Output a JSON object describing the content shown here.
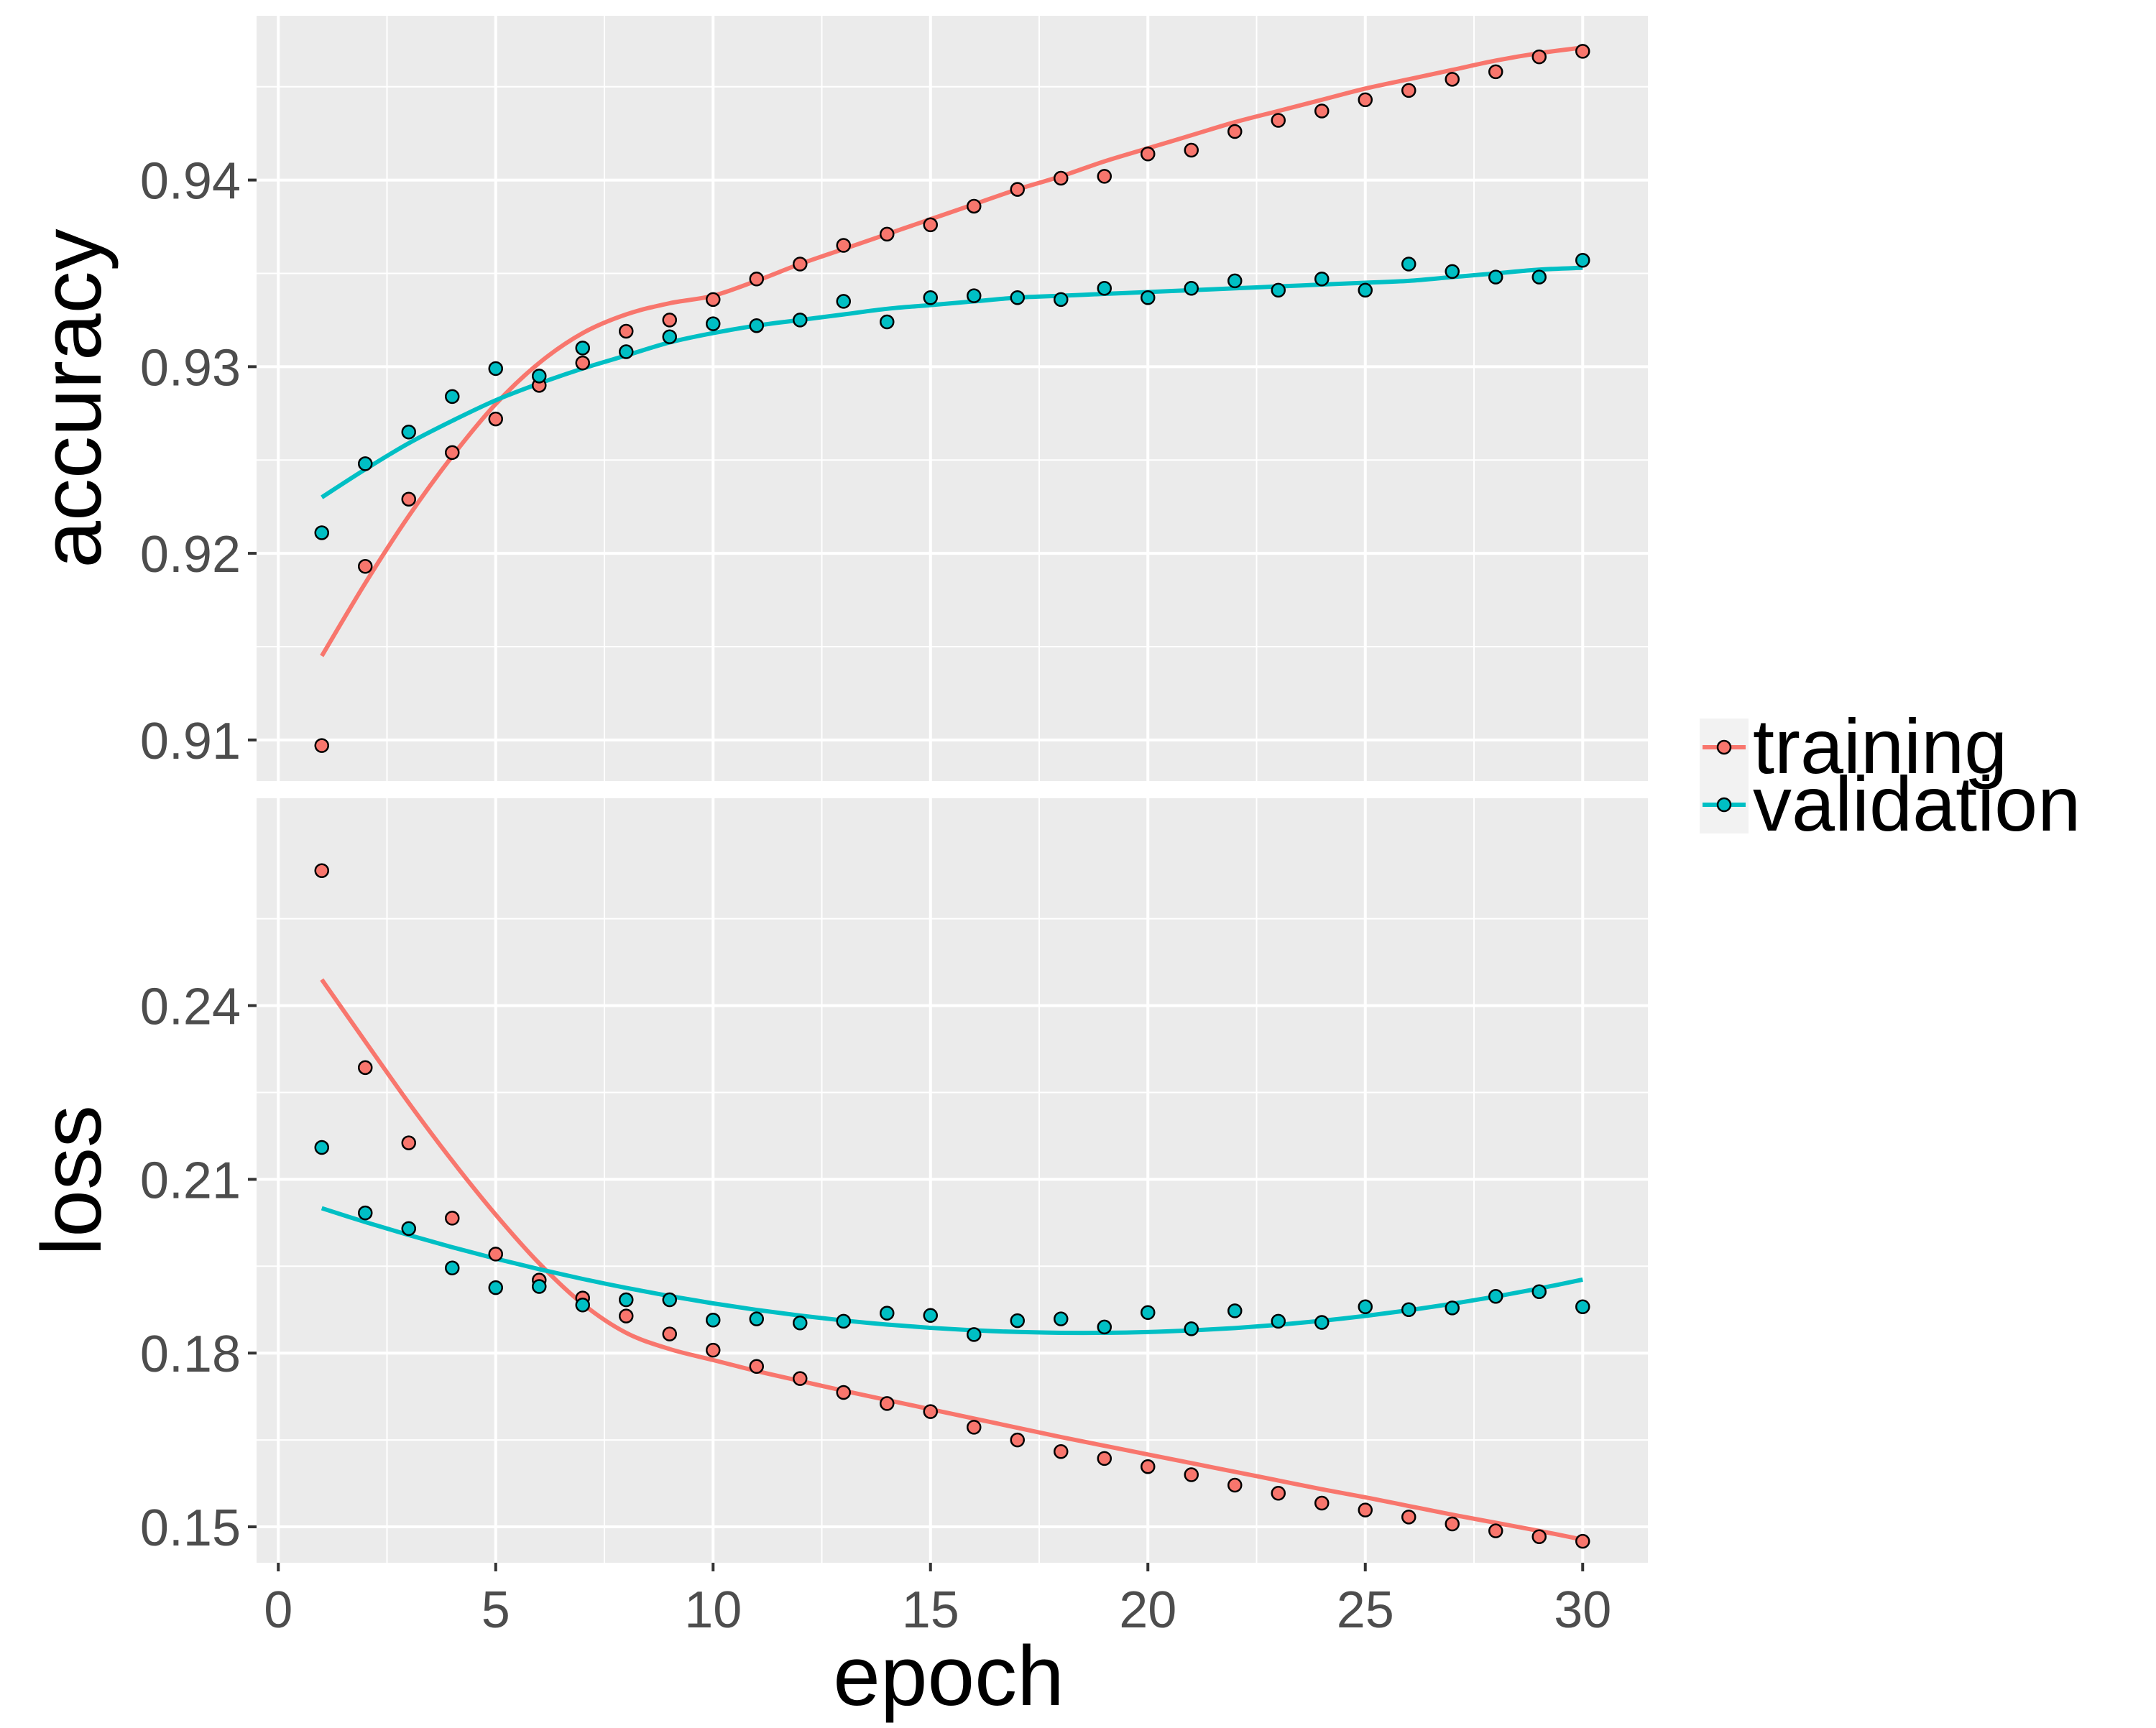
{
  "chart_data": [
    {
      "type": "scatter",
      "facet_label": "accuracy",
      "xlabel": "epoch",
      "ylabel": "accuracy",
      "xlim": [
        -0.5,
        31.5
      ],
      "ylim": [
        0.9078,
        0.9488
      ],
      "x_ticks": [
        0,
        5,
        10,
        15,
        20,
        25,
        30
      ],
      "x_tick_labels": [
        "0",
        "5",
        "10",
        "15",
        "20",
        "25",
        "30"
      ],
      "y_ticks": [
        0.91,
        0.92,
        0.93,
        0.94
      ],
      "y_tick_labels": [
        "0.91",
        "0.92",
        "0.93",
        "0.94"
      ],
      "grid": true,
      "smoothed_trend_lines": true,
      "x": [
        1,
        2,
        3,
        4,
        5,
        6,
        7,
        8,
        9,
        10,
        11,
        12,
        13,
        14,
        15,
        16,
        17,
        18,
        19,
        20,
        21,
        22,
        23,
        24,
        25,
        26,
        27,
        28,
        29,
        30
      ],
      "series": [
        {
          "name": "training",
          "color": "#F8766D",
          "values": [
            0.9097,
            0.9193,
            0.9229,
            0.9254,
            0.9272,
            0.929,
            0.9302,
            0.9319,
            0.9325,
            0.9336,
            0.9347,
            0.9355,
            0.9365,
            0.9371,
            0.9376,
            0.9386,
            0.9395,
            0.9401,
            0.9402,
            0.9414,
            0.9416,
            0.9426,
            0.9432,
            0.9437,
            0.9443,
            0.9448,
            0.9454,
            0.9458,
            0.9466,
            0.9469
          ],
          "trend": [
            0.9145,
            0.9184,
            0.922,
            0.9252,
            0.928,
            0.9302,
            0.9318,
            0.9328,
            0.9334,
            0.9338,
            0.9346,
            0.9355,
            0.9363,
            0.9371,
            0.9379,
            0.9387,
            0.9395,
            0.9402,
            0.941,
            0.9417,
            0.9424,
            0.9431,
            0.9437,
            0.9443,
            0.9449,
            0.9454,
            0.9459,
            0.9464,
            0.9468,
            0.9471
          ]
        },
        {
          "name": "validation",
          "color": "#00BFC4",
          "values": [
            0.9211,
            0.9248,
            0.9265,
            0.9284,
            0.9299,
            0.9295,
            0.931,
            0.9308,
            0.9316,
            0.9323,
            0.9322,
            0.9325,
            0.9335,
            0.9324,
            0.9337,
            0.9338,
            0.9337,
            0.9336,
            0.9342,
            0.9337,
            0.9342,
            0.9346,
            0.9341,
            0.9347,
            0.9341,
            0.9355,
            0.9351,
            0.9348,
            0.9348,
            0.9357
          ],
          "trend": [
            0.923,
            0.9245,
            0.9259,
            0.9271,
            0.9282,
            0.9291,
            0.9299,
            0.9306,
            0.9313,
            0.9318,
            0.9322,
            0.9325,
            0.9328,
            0.9331,
            0.9333,
            0.9335,
            0.9337,
            0.9338,
            0.9339,
            0.934,
            0.9341,
            0.9342,
            0.9343,
            0.9344,
            0.9345,
            0.9346,
            0.9348,
            0.935,
            0.9352,
            0.9353
          ]
        }
      ]
    },
    {
      "type": "scatter",
      "facet_label": "loss",
      "xlabel": "epoch",
      "ylabel": "loss",
      "xlim": [
        -0.5,
        31.5
      ],
      "ylim": [
        0.1438,
        0.2758
      ],
      "x_ticks": [
        0,
        5,
        10,
        15,
        20,
        25,
        30
      ],
      "x_tick_labels": [
        "0",
        "5",
        "10",
        "15",
        "20",
        "25",
        "30"
      ],
      "y_ticks": [
        0.15,
        0.18,
        0.21,
        0.24
      ],
      "y_tick_labels": [
        "0.15",
        "0.18",
        "0.21",
        "0.24"
      ],
      "grid": true,
      "smoothed_trend_lines": true,
      "x": [
        1,
        2,
        3,
        4,
        5,
        6,
        7,
        8,
        9,
        10,
        11,
        12,
        13,
        14,
        15,
        16,
        17,
        18,
        19,
        20,
        21,
        22,
        23,
        24,
        25,
        26,
        27,
        28,
        29,
        30
      ],
      "series": [
        {
          "name": "training",
          "color": "#F8766D",
          "values": [
            0.2633,
            0.2293,
            0.2163,
            0.2033,
            0.1971,
            0.1926,
            0.1895,
            0.1864,
            0.1833,
            0.1805,
            0.1777,
            0.1756,
            0.1732,
            0.1713,
            0.1699,
            0.1672,
            0.165,
            0.163,
            0.1618,
            0.1604,
            0.159,
            0.1572,
            0.1558,
            0.1541,
            0.1529,
            0.1517,
            0.1505,
            0.1493,
            0.1483,
            0.1475
          ],
          "trend": [
            0.2445,
            0.2338,
            0.2232,
            0.2132,
            0.2039,
            0.1955,
            0.1885,
            0.1835,
            0.1807,
            0.1788,
            0.1769,
            0.1752,
            0.1735,
            0.1719,
            0.1703,
            0.1687,
            0.1671,
            0.1655,
            0.164,
            0.1625,
            0.161,
            0.1595,
            0.158,
            0.1565,
            0.1551,
            0.1536,
            0.1521,
            0.1507,
            0.1493,
            0.1478
          ]
        },
        {
          "name": "validation",
          "color": "#00BFC4",
          "values": [
            0.2155,
            0.2042,
            0.2015,
            0.1947,
            0.1913,
            0.1915,
            0.1883,
            0.1892,
            0.1892,
            0.1857,
            0.1859,
            0.1852,
            0.1855,
            0.1869,
            0.1865,
            0.1832,
            0.1856,
            0.1859,
            0.1845,
            0.187,
            0.1842,
            0.1873,
            0.1855,
            0.1853,
            0.188,
            0.1875,
            0.1878,
            0.1898,
            0.1906,
            0.188
          ]
        }
      ]
    }
  ],
  "legend": {
    "position": "right",
    "items": [
      {
        "label": "training",
        "color": "#F8766D"
      },
      {
        "label": "validation",
        "color": "#00BFC4"
      }
    ]
  },
  "style": {
    "panel_background": "#EBEBEB",
    "grid_color": "#FFFFFF",
    "point_outline": "#000000",
    "tick_label_color": "#4D4D4D",
    "title_color": "#000000"
  }
}
